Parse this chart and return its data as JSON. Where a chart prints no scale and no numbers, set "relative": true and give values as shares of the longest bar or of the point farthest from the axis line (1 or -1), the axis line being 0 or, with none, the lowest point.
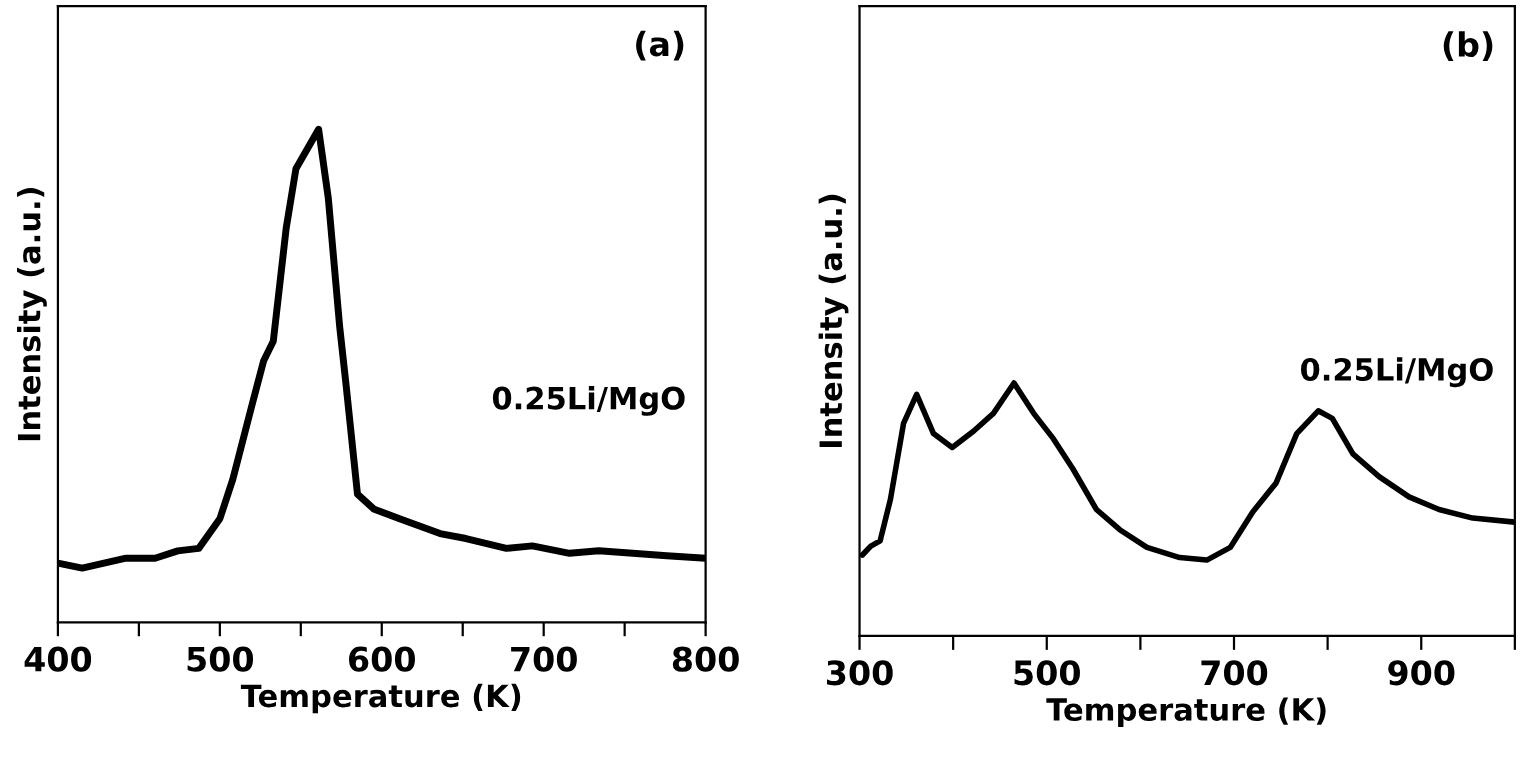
{
  "chart_data": [
    {
      "type": "line",
      "title": "(a)",
      "xlabel": "Temperature (K)",
      "ylabel": "Intensity (a.u.)",
      "relative": true,
      "xlim": [
        400,
        800
      ],
      "xticks": [
        400,
        {
          "value": 450,
          "label": null
        },
        500,
        {
          "value": 550,
          "label": null
        },
        600,
        {
          "value": 650,
          "label": null
        },
        700,
        {
          "value": 750,
          "label": null
        },
        800
      ],
      "grid": false,
      "legend": false,
      "marker": "none",
      "line_style": "solid",
      "series": [
        {
          "name": "0.25Li/MgO",
          "color": "#000000",
          "x": [
            400,
            415,
            442,
            460,
            474,
            487,
            500,
            508,
            519,
            527,
            533,
            541,
            547,
            554,
            561,
            567,
            574,
            578,
            585,
            595,
            611,
            636,
            652,
            677,
            693,
            716,
            734,
            755,
            776,
            800
          ],
          "values": [
            0.12,
            0.11,
            0.13,
            0.13,
            0.145,
            0.15,
            0.21,
            0.29,
            0.43,
            0.53,
            0.57,
            0.8,
            0.92,
            0.96,
            1.0,
            0.86,
            0.6,
            0.48,
            0.26,
            0.23,
            0.21,
            0.18,
            0.17,
            0.15,
            0.155,
            0.14,
            0.145,
            0.14,
            0.135,
            0.13
          ]
        }
      ]
    },
    {
      "type": "line",
      "title": "(b)",
      "xlabel": "Temperature (K)",
      "ylabel": "Intensity (a.u.)",
      "relative": true,
      "xlim": [
        300,
        1000
      ],
      "xticks": [
        300,
        {
          "value": 400,
          "label": null
        },
        500,
        {
          "value": 600,
          "label": null
        },
        700,
        {
          "value": 800,
          "label": null
        },
        900,
        {
          "value": 1000,
          "label": null
        }
      ],
      "grid": false,
      "legend": false,
      "marker": "none",
      "line_style": "solid",
      "series": [
        {
          "name": "0.25Li/MgO",
          "color": "#000000",
          "x": [
            303,
            312,
            322,
            333,
            347,
            361,
            379,
            399,
            422,
            443,
            465,
            486,
            507,
            528,
            553,
            578,
            607,
            642,
            671,
            696,
            720,
            745,
            767,
            790,
            805,
            827,
            855,
            887,
            919,
            955,
            1000
          ],
          "values": [
            0.32,
            0.355,
            0.376,
            0.54,
            0.84,
            0.955,
            0.8,
            0.745,
            0.81,
            0.88,
            1.0,
            0.88,
            0.78,
            0.66,
            0.5,
            0.42,
            0.35,
            0.31,
            0.3,
            0.35,
            0.49,
            0.605,
            0.8,
            0.89,
            0.86,
            0.72,
            0.63,
            0.55,
            0.5,
            0.466,
            0.45
          ]
        }
      ]
    }
  ]
}
